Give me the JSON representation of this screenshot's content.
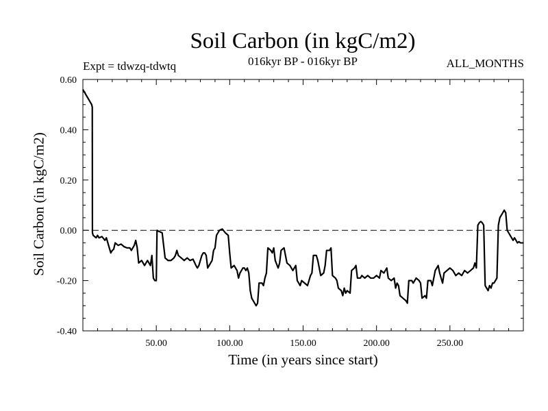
{
  "chart_data": {
    "type": "line",
    "title": "Soil Carbon (in kgC/m2)",
    "subtitle": "016kyr BP - 016kyr BP",
    "annotations": {
      "expt": "Expt = tdwzq-tdwtq",
      "months": "ALL_MONTHS"
    },
    "xlabel": "Time (in years since start)",
    "ylabel": "Soil Carbon (in kgC/m2)",
    "xlim": [
      0,
      300
    ],
    "ylim": [
      -0.4,
      0.6
    ],
    "xticks": [
      50,
      100,
      150,
      200,
      250
    ],
    "xtick_labels": [
      "50.00",
      "100.00",
      "150.00",
      "200.00",
      "250.00"
    ],
    "yticks": [
      -0.4,
      -0.2,
      0.0,
      0.2,
      0.4,
      0.6
    ],
    "ytick_labels": [
      "-0.40",
      "-0.20",
      "0.00",
      "0.20",
      "0.40",
      "0.60"
    ],
    "reference_line": {
      "y": 0,
      "style": "dashed"
    },
    "grid": false,
    "series": [
      {
        "points": [
          [
            0,
            0.56
          ],
          [
            1,
            0.55
          ],
          [
            2,
            0.54
          ],
          [
            3,
            0.53
          ],
          [
            4,
            0.52
          ],
          [
            5,
            0.51
          ],
          [
            6,
            0.5
          ],
          [
            6.4,
            0.49
          ],
          [
            6.5,
            -0.01
          ],
          [
            7,
            -0.02
          ],
          [
            8,
            -0.025
          ],
          [
            9,
            -0.03
          ],
          [
            10,
            -0.02
          ],
          [
            11,
            -0.03
          ],
          [
            13,
            -0.025
          ],
          [
            15,
            -0.04
          ],
          [
            16,
            -0.03
          ],
          [
            17,
            -0.05
          ],
          [
            18,
            -0.07
          ],
          [
            19,
            -0.09
          ],
          [
            20,
            -0.08
          ],
          [
            21,
            -0.075
          ],
          [
            22,
            -0.05
          ],
          [
            24,
            -0.06
          ],
          [
            26,
            -0.055
          ],
          [
            28,
            -0.065
          ],
          [
            30,
            -0.07
          ],
          [
            32,
            -0.07
          ],
          [
            33,
            -0.08
          ],
          [
            35,
            -0.06
          ],
          [
            36,
            -0.04
          ],
          [
            37,
            -0.07
          ],
          [
            38,
            -0.13
          ],
          [
            40,
            -0.12
          ],
          [
            42,
            -0.14
          ],
          [
            44,
            -0.12
          ],
          [
            46,
            -0.14
          ],
          [
            47,
            -0.1
          ],
          [
            48,
            -0.19
          ],
          [
            49,
            -0.2
          ],
          [
            50,
            -0.2
          ],
          [
            50.5,
            0.0
          ],
          [
            52,
            -0.005
          ],
          [
            54,
            -0.01
          ],
          [
            55,
            -0.06
          ],
          [
            56,
            -0.11
          ],
          [
            58,
            -0.12
          ],
          [
            60,
            -0.12
          ],
          [
            62,
            -0.11
          ],
          [
            63,
            -0.1
          ],
          [
            64,
            -0.08
          ],
          [
            65,
            -0.1
          ],
          [
            67,
            -0.11
          ],
          [
            69,
            -0.12
          ],
          [
            71,
            -0.11
          ],
          [
            73,
            -0.12
          ],
          [
            75,
            -0.115
          ],
          [
            77,
            -0.14
          ],
          [
            78,
            -0.15
          ],
          [
            79,
            -0.14
          ],
          [
            80,
            -0.12
          ],
          [
            81,
            -0.1
          ],
          [
            82,
            -0.09
          ],
          [
            83,
            -0.09
          ],
          [
            84,
            -0.1
          ],
          [
            85,
            -0.15
          ],
          [
            86,
            -0.14
          ],
          [
            87,
            -0.13
          ],
          [
            88,
            -0.12
          ],
          [
            89,
            -0.08
          ],
          [
            90,
            -0.07
          ],
          [
            91,
            -0.02
          ],
          [
            92,
            -0.01
          ],
          [
            93,
            0.0
          ],
          [
            95,
            0.005
          ],
          [
            97,
            -0.01
          ],
          [
            99,
            -0.02
          ],
          [
            100,
            -0.09
          ],
          [
            101,
            -0.15
          ],
          [
            103,
            -0.14
          ],
          [
            105,
            -0.16
          ],
          [
            106,
            -0.19
          ],
          [
            107,
            -0.17
          ],
          [
            109,
            -0.15
          ],
          [
            110,
            -0.15
          ],
          [
            111,
            -0.16
          ],
          [
            112,
            -0.15
          ],
          [
            113,
            -0.17
          ],
          [
            114,
            -0.24
          ],
          [
            115,
            -0.27
          ],
          [
            117,
            -0.29
          ],
          [
            118,
            -0.3
          ],
          [
            119,
            -0.29
          ],
          [
            120,
            -0.21
          ],
          [
            122,
            -0.21
          ],
          [
            123,
            -0.22
          ],
          [
            124,
            -0.19
          ],
          [
            125,
            -0.17
          ],
          [
            126,
            -0.07
          ],
          [
            128,
            -0.08
          ],
          [
            129,
            -0.09
          ],
          [
            130,
            -0.07
          ],
          [
            131,
            -0.12
          ],
          [
            133,
            -0.15
          ],
          [
            134,
            -0.13
          ],
          [
            135,
            -0.08
          ],
          [
            137,
            -0.07
          ],
          [
            139,
            -0.13
          ],
          [
            141,
            -0.14
          ],
          [
            143,
            -0.16
          ],
          [
            145,
            -0.14
          ],
          [
            146,
            -0.2
          ],
          [
            148,
            -0.22
          ],
          [
            149,
            -0.2
          ],
          [
            151,
            -0.21
          ],
          [
            153,
            -0.22
          ],
          [
            155,
            -0.18
          ],
          [
            156,
            -0.17
          ],
          [
            157,
            -0.1
          ],
          [
            159,
            -0.1
          ],
          [
            160,
            -0.12
          ],
          [
            161,
            -0.15
          ],
          [
            162,
            -0.18
          ],
          [
            164,
            -0.17
          ],
          [
            165,
            -0.14
          ],
          [
            166,
            -0.08
          ],
          [
            168,
            -0.08
          ],
          [
            169,
            -0.07
          ],
          [
            170,
            -0.18
          ],
          [
            172,
            -0.19
          ],
          [
            173,
            -0.2
          ],
          [
            174,
            -0.23
          ],
          [
            176,
            -0.24
          ],
          [
            177,
            -0.26
          ],
          [
            178,
            -0.23
          ],
          [
            179,
            -0.25
          ],
          [
            180,
            -0.24
          ],
          [
            182,
            -0.25
          ],
          [
            183,
            -0.16
          ],
          [
            185,
            -0.15
          ],
          [
            186,
            -0.14
          ],
          [
            187,
            -0.19
          ],
          [
            189,
            -0.19
          ],
          [
            190,
            -0.18
          ],
          [
            192,
            -0.19
          ],
          [
            194,
            -0.18
          ],
          [
            196,
            -0.19
          ],
          [
            198,
            -0.19
          ],
          [
            200,
            -0.18
          ],
          [
            202,
            -0.19
          ],
          [
            203,
            -0.16
          ],
          [
            205,
            -0.17
          ],
          [
            207,
            -0.15
          ],
          [
            208,
            -0.19
          ],
          [
            210,
            -0.2
          ],
          [
            212,
            -0.19
          ],
          [
            213,
            -0.23
          ],
          [
            214,
            -0.21
          ],
          [
            215,
            -0.22
          ],
          [
            216,
            -0.26
          ],
          [
            218,
            -0.27
          ],
          [
            220,
            -0.28
          ],
          [
            221,
            -0.29
          ],
          [
            222,
            -0.2
          ],
          [
            224,
            -0.2
          ],
          [
            225,
            -0.21
          ],
          [
            227,
            -0.19
          ],
          [
            229,
            -0.2
          ],
          [
            230,
            -0.21
          ],
          [
            231,
            -0.27
          ],
          [
            233,
            -0.26
          ],
          [
            234,
            -0.27
          ],
          [
            235,
            -0.2
          ],
          [
            237,
            -0.2
          ],
          [
            238,
            -0.22
          ],
          [
            240,
            -0.16
          ],
          [
            242,
            -0.14
          ],
          [
            243,
            -0.17
          ],
          [
            244,
            -0.19
          ],
          [
            245,
            -0.21
          ],
          [
            246,
            -0.17
          ],
          [
            248,
            -0.16
          ],
          [
            250,
            -0.15
          ],
          [
            252,
            -0.16
          ],
          [
            254,
            -0.18
          ],
          [
            256,
            -0.17
          ],
          [
            258,
            -0.18
          ],
          [
            260,
            -0.16
          ],
          [
            262,
            -0.17
          ],
          [
            264,
            -0.16
          ],
          [
            266,
            -0.15
          ],
          [
            267,
            -0.13
          ],
          [
            268,
            -0.15
          ],
          [
            269,
            0.02
          ],
          [
            270,
            0.03
          ],
          [
            271,
            0.035
          ],
          [
            272,
            0.03
          ],
          [
            273,
            0.02
          ],
          [
            274,
            -0.22
          ],
          [
            276,
            -0.24
          ],
          [
            277,
            -0.22
          ],
          [
            278,
            -0.23
          ],
          [
            279,
            -0.21
          ],
          [
            280,
            -0.21
          ],
          [
            281,
            -0.2
          ],
          [
            282,
            -0.19
          ],
          [
            283,
            0.02
          ],
          [
            284,
            0.05
          ],
          [
            285,
            0.06
          ],
          [
            286,
            0.07
          ],
          [
            287,
            0.08
          ],
          [
            288,
            0.07
          ],
          [
            289,
            0.0
          ],
          [
            290,
            -0.01
          ],
          [
            291,
            -0.02
          ],
          [
            292,
            -0.03
          ],
          [
            293,
            -0.04
          ],
          [
            294,
            -0.03
          ],
          [
            295,
            -0.04
          ],
          [
            296,
            -0.05
          ],
          [
            297,
            -0.045
          ],
          [
            298,
            -0.05
          ],
          [
            300,
            -0.05
          ]
        ]
      }
    ]
  }
}
